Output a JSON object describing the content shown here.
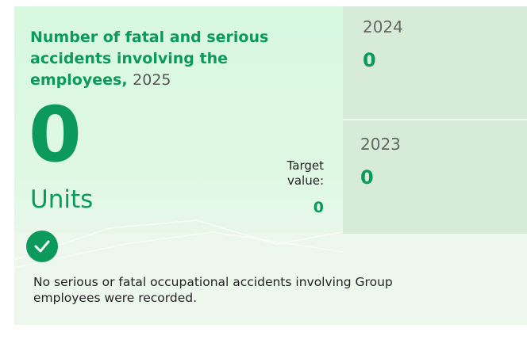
{
  "title": "Number of fatal and serious accidents involving the employees,",
  "year": "2025",
  "value": 0,
  "unit": "Units",
  "target": {
    "label": "Target value:",
    "value": 0
  },
  "history": [
    {
      "year": "2024",
      "value": 0
    },
    {
      "year": "2023",
      "value": 0
    }
  ],
  "note": "No serious or fatal occupational accidents involving Group employees were recorded."
}
